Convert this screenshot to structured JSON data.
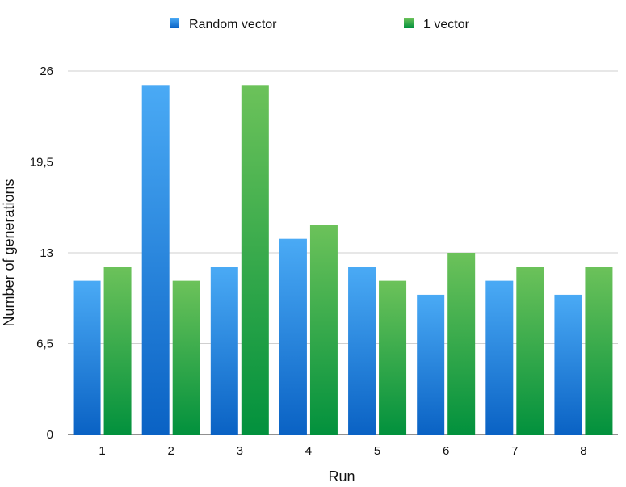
{
  "chart_data": {
    "type": "bar",
    "categories": [
      "1",
      "2",
      "3",
      "4",
      "5",
      "6",
      "7",
      "8"
    ],
    "series": [
      {
        "name": "Random vector",
        "values": [
          11,
          25,
          12,
          14,
          12,
          10,
          11,
          10
        ],
        "color": "#2f8de4"
      },
      {
        "name": "1 vector",
        "values": [
          12,
          11,
          25,
          15,
          11,
          13,
          12,
          12
        ],
        "color": "#22a24a"
      }
    ],
    "xlabel": "Run",
    "ylabel": "Number of generations",
    "ylim": [
      0,
      26
    ],
    "yticks": [
      "0",
      "6,5",
      "13",
      "19,5",
      "26"
    ],
    "grid": true,
    "legend_position": "top"
  }
}
